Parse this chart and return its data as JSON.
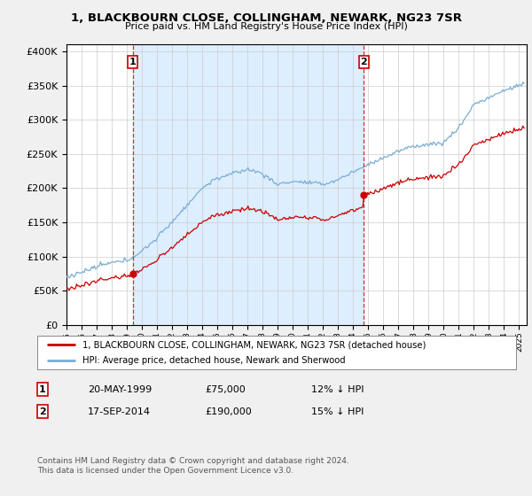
{
  "title": "1, BLACKBOURN CLOSE, COLLINGHAM, NEWARK, NG23 7SR",
  "subtitle": "Price paid vs. HM Land Registry's House Price Index (HPI)",
  "ylim": [
    0,
    400000
  ],
  "xlim_start": 1995.0,
  "xlim_end": 2025.5,
  "transaction1_x": 1999.38,
  "transaction1_y": 75000,
  "transaction1_label": "1",
  "transaction1_date": "20-MAY-1999",
  "transaction1_price": "£75,000",
  "transaction1_hpi": "12% ↓ HPI",
  "transaction2_x": 2014.71,
  "transaction2_y": 190000,
  "transaction2_label": "2",
  "transaction2_date": "17-SEP-2014",
  "transaction2_price": "£190,000",
  "transaction2_hpi": "15% ↓ HPI",
  "red_line_color": "#cc0000",
  "blue_line_color": "#7aadd4",
  "fill_color": "#ddeeff",
  "vline_color": "#cc0000",
  "legend_line1": "1, BLACKBOURN CLOSE, COLLINGHAM, NEWARK, NG23 7SR (detached house)",
  "legend_line2": "HPI: Average price, detached house, Newark and Sherwood",
  "footnote": "Contains HM Land Registry data © Crown copyright and database right 2024.\nThis data is licensed under the Open Government Licence v3.0.",
  "background_color": "#f0f0f0",
  "plot_bg_color": "#ffffff"
}
